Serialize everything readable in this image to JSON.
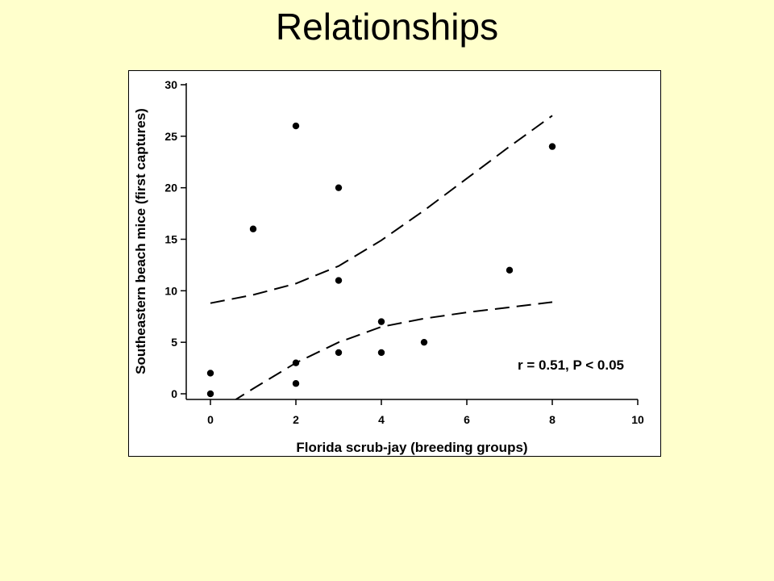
{
  "slide": {
    "title": "Relationships",
    "background": "#FFFFCC"
  },
  "chart_data": {
    "type": "scatter",
    "xlabel": "Florida scrub-jay (breeding groups)",
    "ylabel": "Southeastern beach mice (first captures)",
    "xlim": [
      0,
      10
    ],
    "ylim": [
      0,
      30
    ],
    "xticks": [
      "0",
      "2",
      "4",
      "6",
      "8",
      "10"
    ],
    "yticks": [
      "0",
      "5",
      "10",
      "15",
      "20",
      "25",
      "30"
    ],
    "grid": false,
    "annotation": "r = 0.51, P < 0.05",
    "points": [
      {
        "x": 0,
        "y": 0
      },
      {
        "x": 0,
        "y": 2
      },
      {
        "x": 1,
        "y": 16
      },
      {
        "x": 2,
        "y": 1
      },
      {
        "x": 2,
        "y": 3
      },
      {
        "x": 2,
        "y": 26
      },
      {
        "x": 3,
        "y": 4
      },
      {
        "x": 3,
        "y": 11
      },
      {
        "x": 3,
        "y": 20
      },
      {
        "x": 4,
        "y": 4
      },
      {
        "x": 4,
        "y": 7
      },
      {
        "x": 5,
        "y": 5
      },
      {
        "x": 7,
        "y": 12
      },
      {
        "x": 8,
        "y": 24
      }
    ],
    "confidence_bands": {
      "style": "dashed",
      "upper": [
        {
          "x": 0,
          "y": 8.8
        },
        {
          "x": 1,
          "y": 9.6
        },
        {
          "x": 2,
          "y": 10.7
        },
        {
          "x": 3,
          "y": 12.4
        },
        {
          "x": 4,
          "y": 14.9
        },
        {
          "x": 5,
          "y": 17.8
        },
        {
          "x": 6,
          "y": 20.9
        },
        {
          "x": 7,
          "y": 24.0
        },
        {
          "x": 8,
          "y": 27.0
        }
      ],
      "lower": [
        {
          "x": 0.5,
          "y": -0.8
        },
        {
          "x": 1,
          "y": 0.5
        },
        {
          "x": 2,
          "y": 3.0
        },
        {
          "x": 3,
          "y": 5.0
        },
        {
          "x": 4,
          "y": 6.5
        },
        {
          "x": 5,
          "y": 7.3
        },
        {
          "x": 6,
          "y": 7.9
        },
        {
          "x": 7,
          "y": 8.4
        },
        {
          "x": 8,
          "y": 8.9
        }
      ]
    }
  }
}
